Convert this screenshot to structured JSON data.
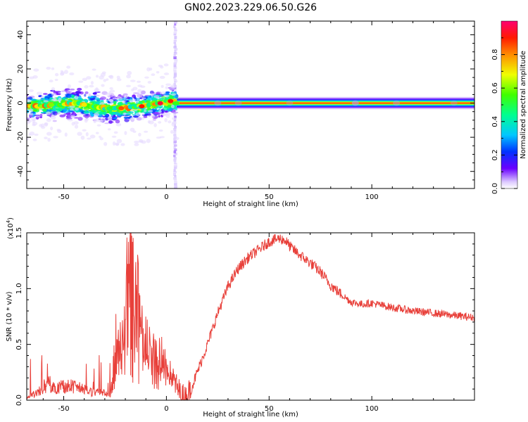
{
  "chart_data": [
    {
      "type": "heatmap",
      "title": "GN02.2023.229.06.50.G26",
      "xlabel": "Height of straight line (km)",
      "ylabel": "Frequency (Hz)",
      "xlim": [
        -68,
        150
      ],
      "ylim": [
        -50,
        48
      ],
      "xticks": [
        -50,
        0,
        50,
        100
      ],
      "yticks": [
        -40,
        -20,
        0,
        20,
        40
      ],
      "colorbar": {
        "label": "Normalized spectral amplitude",
        "range": [
          0,
          1
        ],
        "ticks": [
          "0.0",
          "0.2",
          "0.4",
          "0.6",
          "0.8"
        ]
      },
      "ridge": {
        "x": [
          -68,
          -60,
          -50,
          -45,
          -40,
          -35,
          -30,
          -25,
          -20,
          -15,
          -10,
          -5,
          0,
          3,
          5,
          10,
          50,
          100,
          150
        ],
        "y": [
          -2,
          -1.5,
          -0.5,
          0,
          -1,
          -2,
          -3,
          -3,
          -3,
          -2.5,
          -1.5,
          -0.5,
          0.5,
          1.5,
          0,
          0,
          0,
          0,
          0
        ]
      },
      "vertical_streak_x": 4.5
    },
    {
      "type": "line",
      "xlabel": "Height of straight line (km)",
      "ylabel": "SNR (10 * v/v)",
      "y_multiplier": "(x10",
      "y_multiplier_exp": "4",
      "y_multiplier_close": ")",
      "xlim": [
        -68,
        150
      ],
      "ylim": [
        0,
        1.5
      ],
      "xticks": [
        -50,
        0,
        50,
        100
      ],
      "yticks": [
        "0.0",
        "0.5",
        "1.0",
        "1.5"
      ],
      "series": [
        {
          "color": "#e8403a",
          "x": [
            -68,
            -63,
            -60,
            -57,
            -55,
            -50,
            -45,
            -40,
            -35,
            -32,
            -30,
            -27,
            -25,
            -22,
            -20,
            -17,
            -15,
            -12,
            -10,
            -8,
            -5,
            -2,
            0,
            3,
            5,
            7,
            9,
            12,
            15,
            20,
            25,
            30,
            35,
            40,
            45,
            50,
            55,
            58,
            60,
            65,
            70,
            75,
            80,
            85,
            90,
            95,
            100,
            110,
            120,
            130,
            140,
            150
          ],
          "values": [
            0.05,
            0.12,
            0.22,
            0.28,
            0.2,
            0.25,
            0.22,
            0.18,
            0.12,
            0.2,
            0.1,
            0.08,
            0.4,
            0.45,
            0.55,
            0.6,
            0.55,
            0.52,
            0.45,
            0.4,
            0.38,
            0.35,
            0.3,
            0.2,
            0.12,
            0.05,
            0.02,
            0.1,
            0.25,
            0.5,
            0.78,
            1.02,
            1.18,
            1.28,
            1.35,
            1.42,
            1.45,
            1.43,
            1.38,
            1.3,
            1.23,
            1.15,
            1.03,
            0.95,
            0.88,
            0.86,
            0.87,
            0.83,
            0.8,
            0.78,
            0.76,
            0.74
          ]
        }
      ]
    }
  ]
}
